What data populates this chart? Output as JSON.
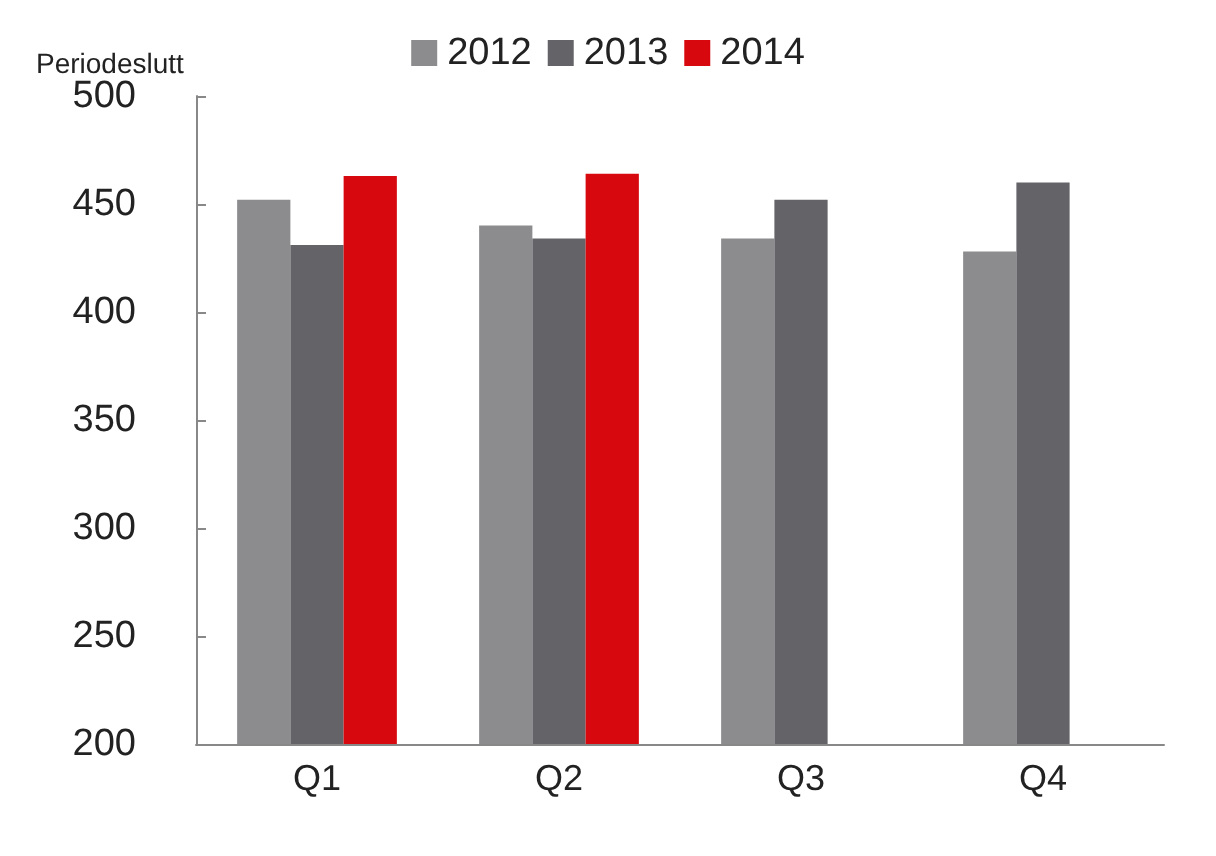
{
  "chart_data": {
    "type": "bar",
    "ylabel": "Periodeslutt",
    "categories": [
      "Q1",
      "Q2",
      "Q3",
      "Q4"
    ],
    "series": [
      {
        "name": "2012",
        "color": "#8c8c8e",
        "values": [
          452,
          440,
          434,
          428
        ]
      },
      {
        "name": "2013",
        "color": "#646468",
        "values": [
          431,
          434,
          452,
          460
        ]
      },
      {
        "name": "2014",
        "color": "#d7090f",
        "values": [
          463,
          464,
          null,
          null
        ]
      }
    ],
    "ylim": [
      200,
      500
    ],
    "yticks": [
      200,
      250,
      300,
      350,
      400,
      450,
      500
    ],
    "grid": false,
    "legend": "top"
  }
}
